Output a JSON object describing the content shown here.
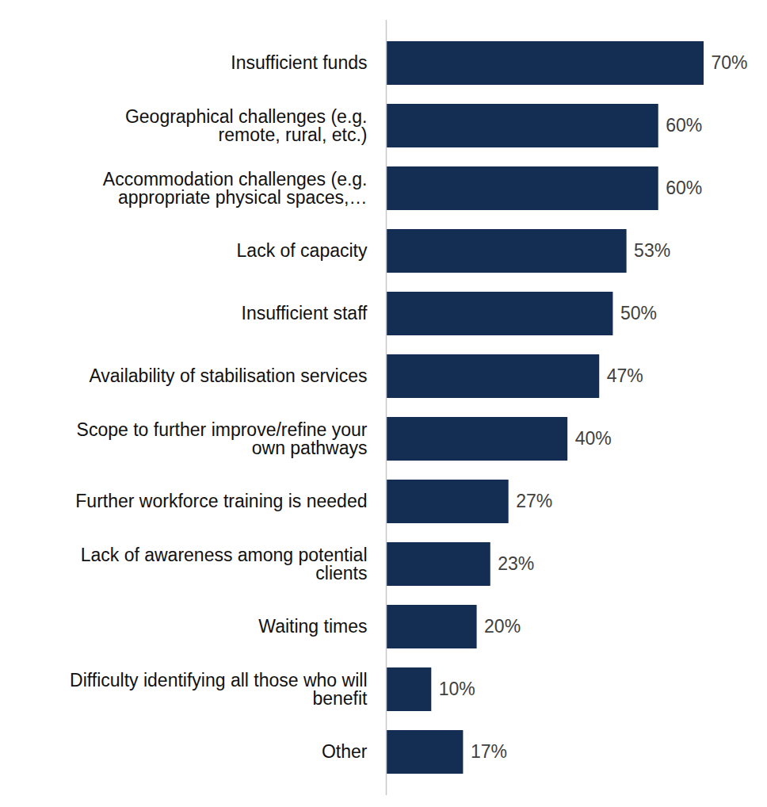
{
  "chart_data": {
    "type": "bar",
    "orientation": "horizontal",
    "categories": [
      "Insufficient funds",
      "Geographical challenges (e.g.\nremote, rural, etc.)",
      "Accommodation challenges (e.g.\nappropriate physical spaces,…",
      "Lack of capacity",
      "Insufficient staff",
      "Availability of stabilisation services",
      "Scope to further improve/refine your\nown pathways",
      "Further workforce training is needed",
      "Lack of awareness among potential\nclients",
      "Waiting times",
      "Difficulty identifying all those who will\nbenefit",
      "Other"
    ],
    "values": [
      70,
      60,
      60,
      53,
      50,
      47,
      40,
      27,
      23,
      20,
      10,
      17
    ],
    "value_labels": [
      "70%",
      "60%",
      "60%",
      "53%",
      "50%",
      "47%",
      "40%",
      "27%",
      "23%",
      "20%",
      "10%",
      "17%"
    ],
    "color": "#142d52",
    "xlim": [
      0,
      70
    ],
    "xticks": [],
    "data_labels": true,
    "tick_labels": "y",
    "grid": false
  }
}
